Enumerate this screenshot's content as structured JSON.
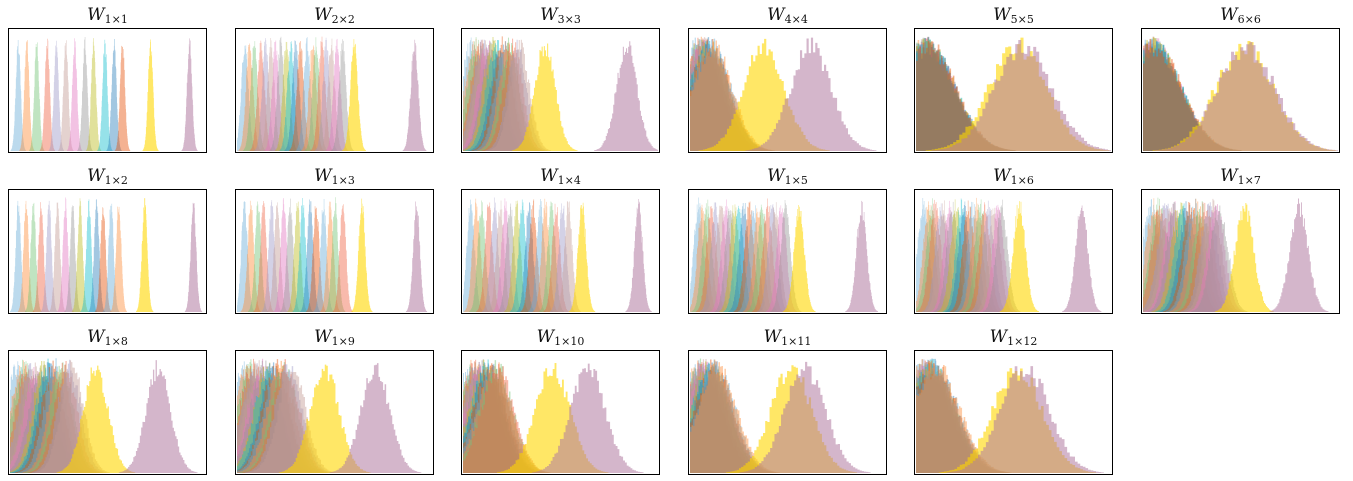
{
  "chart_data": [
    {
      "type": "histogram",
      "title": "W",
      "dims": "1×1",
      "rows": 1,
      "cols": 1,
      "groups": 12,
      "spread": 0.012,
      "gap": 0.54,
      "highlight": 0.72,
      "purple_offset": 0.92
    },
    {
      "type": "histogram",
      "title": "W",
      "dims": "2×2",
      "rows": 2,
      "cols": 2,
      "groups": 20,
      "spread": 0.018,
      "gap": 0.5,
      "highlight": 0.6,
      "purple_offset": 0.91
    },
    {
      "type": "histogram",
      "title": "W",
      "dims": "3×3",
      "rows": 3,
      "cols": 3,
      "groups": 18,
      "spread": 0.05,
      "gap": 0.25,
      "highlight": 0.42,
      "purple_offset": 0.84
    },
    {
      "type": "histogram",
      "title": "W",
      "dims": "4×4",
      "rows": 4,
      "cols": 4,
      "groups": 14,
      "spread": 0.1,
      "gap": 0.08,
      "highlight": 0.38,
      "purple_offset": 0.62
    },
    {
      "type": "histogram",
      "title": "W",
      "dims": "5×5",
      "rows": 5,
      "cols": 5,
      "groups": 12,
      "spread": 0.14,
      "gap": 0.03,
      "highlight": 0.52,
      "purple_offset": 0.55
    },
    {
      "type": "histogram",
      "title": "W",
      "dims": "6×6",
      "rows": 6,
      "cols": 6,
      "groups": 12,
      "spread": 0.14,
      "gap": 0.02,
      "highlight": 0.52,
      "purple_offset": 0.53
    },
    {
      "type": "histogram",
      "title": "W",
      "dims": "1×2",
      "rows": 1,
      "cols": 2,
      "groups": 14,
      "spread": 0.013,
      "gap": 0.52,
      "highlight": 0.69,
      "purple_offset": 0.94
    },
    {
      "type": "histogram",
      "title": "W",
      "dims": "1×3",
      "rows": 1,
      "cols": 3,
      "groups": 16,
      "spread": 0.016,
      "gap": 0.5,
      "highlight": 0.64,
      "purple_offset": 0.92
    },
    {
      "type": "histogram",
      "title": "W",
      "dims": "1×4",
      "rows": 1,
      "cols": 4,
      "groups": 18,
      "spread": 0.02,
      "gap": 0.5,
      "highlight": 0.61,
      "purple_offset": 0.9
    },
    {
      "type": "histogram",
      "title": "W",
      "dims": "1×5",
      "rows": 1,
      "cols": 5,
      "groups": 20,
      "spread": 0.025,
      "gap": 0.45,
      "highlight": 0.56,
      "purple_offset": 0.88
    },
    {
      "type": "histogram",
      "title": "W",
      "dims": "1×6",
      "rows": 1,
      "cols": 6,
      "groups": 20,
      "spread": 0.03,
      "gap": 0.4,
      "highlight": 0.53,
      "purple_offset": 0.85
    },
    {
      "type": "histogram",
      "title": "W",
      "dims": "1×7",
      "rows": 1,
      "cols": 7,
      "groups": 20,
      "spread": 0.045,
      "gap": 0.35,
      "highlight": 0.52,
      "purple_offset": 0.8
    },
    {
      "type": "histogram",
      "title": "W",
      "dims": "1×8",
      "rows": 1,
      "cols": 8,
      "groups": 18,
      "spread": 0.06,
      "gap": 0.28,
      "highlight": 0.44,
      "purple_offset": 0.76
    },
    {
      "type": "histogram",
      "title": "W",
      "dims": "1×9",
      "rows": 1,
      "cols": 9,
      "groups": 18,
      "spread": 0.07,
      "gap": 0.24,
      "highlight": 0.45,
      "purple_offset": 0.71
    },
    {
      "type": "histogram",
      "title": "W",
      "dims": "1×10",
      "rows": 1,
      "cols": 10,
      "groups": 16,
      "spread": 0.085,
      "gap": 0.14,
      "highlight": 0.46,
      "purple_offset": 0.64
    },
    {
      "type": "histogram",
      "title": "W",
      "dims": "1×11",
      "rows": 1,
      "cols": 11,
      "groups": 14,
      "spread": 0.1,
      "gap": 0.1,
      "highlight": 0.52,
      "purple_offset": 0.59
    },
    {
      "type": "histogram",
      "title": "W",
      "dims": "1×12",
      "rows": 1,
      "cols": 12,
      "groups": 14,
      "spread": 0.12,
      "gap": 0.06,
      "highlight": 0.52,
      "purple_offset": 0.56
    }
  ],
  "colors": {
    "palette": [
      "#6baed6",
      "#fd8d3c",
      "#74c476",
      "#ef6548",
      "#9e9ac8",
      "#c49c94",
      "#e377c2",
      "#969696",
      "#bcbd22",
      "#17becf",
      "#3182bd",
      "#e6550d"
    ],
    "highlight": "#ffd700",
    "last": "#b07aa1"
  }
}
